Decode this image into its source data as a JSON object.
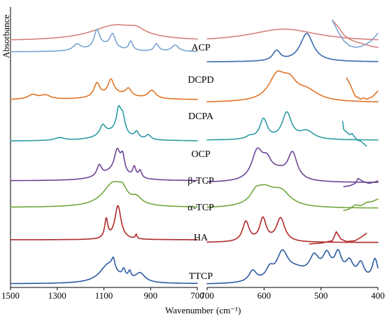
{
  "chart_data": [
    {
      "type": "line",
      "panel": "left",
      "xlabel": "Wavenumber",
      "ylabel": "Absorbance",
      "xlim": [
        1500,
        700
      ],
      "x_ticks": [
        "1500",
        "1300",
        "1100",
        "900",
        "700"
      ],
      "series": [
        {
          "name": "ACP",
          "color": "#d4827b",
          "baseline": 0.75,
          "peaks": [
            {
              "x": 1050,
              "h": 0.85,
              "w": 130
            },
            {
              "x": 960,
              "h": 0.25,
              "w": 40
            }
          ]
        },
        {
          "name": "DCPD",
          "color": "#7aa3d3",
          "baseline": 1.0,
          "peaks": [
            {
              "x": 1215,
              "h": 0.35,
              "w": 20
            },
            {
              "x": 1130,
              "h": 0.95,
              "w": 14
            },
            {
              "x": 1063,
              "h": 0.75,
              "w": 14
            },
            {
              "x": 985,
              "h": 0.5,
              "w": 10
            },
            {
              "x": 875,
              "h": 0.4,
              "w": 12
            },
            {
              "x": 795,
              "h": 0.35,
              "w": 18
            },
            {
              "x": 1100,
              "h": 0.3,
              "w": 60
            }
          ]
        },
        {
          "name": "DCPA",
          "color": "#e07428",
          "baseline": 0.6,
          "peaks": [
            {
              "x": 1405,
              "h": 0.25,
              "w": 25
            },
            {
              "x": 1350,
              "h": 0.22,
              "w": 25
            },
            {
              "x": 1130,
              "h": 0.75,
              "w": 15
            },
            {
              "x": 1070,
              "h": 0.8,
              "w": 15
            },
            {
              "x": 995,
              "h": 0.4,
              "w": 15
            },
            {
              "x": 895,
              "h": 0.45,
              "w": 20
            },
            {
              "x": 1050,
              "h": 0.3,
              "w": 80
            }
          ]
        },
        {
          "name": "OCP",
          "color": "#2e9aa3",
          "baseline": 0.45,
          "peaks": [
            {
              "x": 1105,
              "h": 0.55,
              "w": 15
            },
            {
              "x": 1037,
              "h": 1.2,
              "w": 12
            },
            {
              "x": 1020,
              "h": 0.9,
              "w": 12
            },
            {
              "x": 960,
              "h": 0.35,
              "w": 10
            },
            {
              "x": 910,
              "h": 0.25,
              "w": 12
            },
            {
              "x": 1290,
              "h": 0.15,
              "w": 25
            },
            {
              "x": 1060,
              "h": 0.45,
              "w": 70
            }
          ]
        },
        {
          "name": "β-TCP",
          "color": "#6e4595",
          "baseline": 0.5,
          "peaks": [
            {
              "x": 1120,
              "h": 0.6,
              "w": 12
            },
            {
              "x": 1043,
              "h": 1.2,
              "w": 15
            },
            {
              "x": 1020,
              "h": 0.9,
              "w": 10
            },
            {
              "x": 970,
              "h": 0.55,
              "w": 8
            },
            {
              "x": 945,
              "h": 0.4,
              "w": 8
            },
            {
              "x": 1060,
              "h": 0.45,
              "w": 70
            }
          ]
        },
        {
          "name": "α-TCP",
          "color": "#6fa83c",
          "baseline": 0.35,
          "peaks": [
            {
              "x": 1060,
              "h": 1.3,
              "w": 55
            },
            {
              "x": 1020,
              "h": 0.45,
              "w": 20
            },
            {
              "x": 960,
              "h": 0.35,
              "w": 25
            }
          ]
        },
        {
          "name": "HA",
          "color": "#b02a2a",
          "baseline": 0.5,
          "peaks": [
            {
              "x": 1090,
              "h": 1.05,
              "w": 8
            },
            {
              "x": 1040,
              "h": 1.85,
              "w": 16
            },
            {
              "x": 962,
              "h": 0.25,
              "w": 4
            }
          ]
        },
        {
          "name": "TTCP",
          "color": "#2c5ca3",
          "baseline": 0.2,
          "peaks": [
            {
              "x": 1080,
              "h": 1.05,
              "w": 45
            },
            {
              "x": 1060,
              "h": 0.55,
              "w": 8
            },
            {
              "x": 1015,
              "h": 0.45,
              "w": 8
            },
            {
              "x": 990,
              "h": 0.4,
              "w": 7
            },
            {
              "x": 945,
              "h": 0.5,
              "w": 25
            }
          ]
        }
      ]
    },
    {
      "type": "line",
      "panel": "right",
      "xlabel": "(cm⁻¹)",
      "xlim": [
        700,
        400
      ],
      "x_ticks": [
        "700",
        "600",
        "500",
        "400"
      ],
      "series": [
        {
          "name": "ACP",
          "color": "#d4827b",
          "baseline": 0.7,
          "peaks": [
            {
              "x": 565,
              "h": 0.7,
              "w": 75
            }
          ],
          "inset": {
            "color": "#d4827b",
            "x": [
              480,
              400
            ],
            "points": [
              [
                480,
                2.1
              ],
              [
                470,
                1.7
              ],
              [
                460,
                1.2
              ],
              [
                450,
                0.95
              ],
              [
                440,
                0.8
              ],
              [
                430,
                0.7
              ],
              [
                420,
                0.6
              ],
              [
                410,
                0.5
              ],
              [
                400,
                0.45
              ]
            ]
          },
          "inset2": {
            "color": "#7aa3d3",
            "points": [
              [
                480,
                2.1
              ],
              [
                470,
                1.4
              ],
              [
                460,
                0.85
              ],
              [
                450,
                0.55
              ],
              [
                440,
                0.45
              ],
              [
                430,
                0.5
              ],
              [
                420,
                0.65
              ],
              [
                410,
                0.9
              ],
              [
                400,
                1.3
              ]
            ]
          }
        },
        {
          "name": "DCPD",
          "color": "#3a68b0",
          "baseline": 0.45,
          "peaks": [
            {
              "x": 578,
              "h": 0.55,
              "w": 8
            },
            {
              "x": 525,
              "h": 1.55,
              "w": 14
            }
          ]
        },
        {
          "name": "DCPA",
          "color": "#e07428",
          "baseline": 0.45,
          "peaks": [
            {
              "x": 577,
              "h": 1.35,
              "w": 18
            },
            {
              "x": 555,
              "h": 0.8,
              "w": 15
            },
            {
              "x": 525,
              "h": 0.55,
              "w": 25
            }
          ],
          "inset": {
            "color": "#e07428",
            "points": [
              [
                455,
                2.0
              ],
              [
                450,
                1.7
              ],
              [
                440,
                0.9
              ],
              [
                430,
                0.7
              ],
              [
                425,
                0.8
              ],
              [
                420,
                0.7
              ],
              [
                410,
                0.85
              ],
              [
                400,
                1.2
              ]
            ]
          }
        },
        {
          "name": "OCP",
          "color": "#2e9aa3",
          "baseline": 0.5,
          "peaks": [
            {
              "x": 601,
              "h": 1.1,
              "w": 8
            },
            {
              "x": 560,
              "h": 1.45,
              "w": 10
            },
            {
              "x": 525,
              "h": 0.45,
              "w": 15
            },
            {
              "x": 625,
              "h": 0.15,
              "w": 8
            }
          ],
          "inset": {
            "color": "#2e9aa3",
            "points": [
              [
                462,
                1.7
              ],
              [
                460,
                1.2
              ],
              [
                450,
                0.9
              ],
              [
                445,
                0.95
              ],
              [
                440,
                0.7
              ],
              [
                435,
                0.55
              ],
              [
                430,
                0.5
              ],
              [
                420,
                0.2
              ]
            ]
          }
        },
        {
          "name": "β-TCP",
          "color": "#6e4595",
          "baseline": 0.4,
          "peaks": [
            {
              "x": 612,
              "h": 1.55,
              "w": 12
            },
            {
              "x": 595,
              "h": 0.8,
              "w": 10
            },
            {
              "x": 550,
              "h": 1.45,
              "w": 10
            },
            {
              "x": 575,
              "h": 0.45,
              "w": 20
            }
          ],
          "inset": {
            "color": "#6e4595",
            "points": [
              [
                460,
                0.2
              ],
              [
                450,
                0.25
              ],
              [
                440,
                0.4
              ],
              [
                435,
                0.7
              ],
              [
                425,
                0.5
              ],
              [
                415,
                0.4
              ],
              [
                405,
                0.5
              ],
              [
                400,
                0.55
              ]
            ]
          }
        },
        {
          "name": "α-TCP",
          "color": "#6fa83c",
          "baseline": 0.3,
          "peaks": [
            {
              "x": 600,
              "h": 0.95,
              "w": 22
            },
            {
              "x": 570,
              "h": 0.75,
              "w": 20
            },
            {
              "x": 615,
              "h": 0.4,
              "w": 10
            }
          ],
          "inset": {
            "color": "#6fa83c",
            "points": [
              [
                460,
                0.2
              ],
              [
                450,
                0.3
              ],
              [
                440,
                0.55
              ],
              [
                430,
                0.5
              ],
              [
                420,
                0.7
              ],
              [
                410,
                0.75
              ],
              [
                400,
                0.9
              ]
            ]
          }
        },
        {
          "name": "HA",
          "color": "#b02a2a",
          "baseline": 0.35,
          "peaks": [
            {
              "x": 632,
              "h": 1.1,
              "w": 7
            },
            {
              "x": 602,
              "h": 1.25,
              "w": 7
            },
            {
              "x": 571,
              "h": 1.3,
              "w": 9
            }
          ],
          "inset": {
            "color": "#b02a2a",
            "points": [
              [
                520,
                0.3
              ],
              [
                500,
                0.35
              ],
              [
                480,
                0.5
              ],
              [
                473,
                1.05
              ],
              [
                465,
                0.6
              ],
              [
                455,
                0.45
              ],
              [
                440,
                0.5
              ],
              [
                430,
                0.7
              ],
              [
                420,
                0.95
              ]
            ]
          }
        },
        {
          "name": "TTCP",
          "color": "#2c5ca3",
          "baseline": 0.15,
          "peaks": [
            {
              "x": 620,
              "h": 0.6,
              "w": 8
            },
            {
              "x": 590,
              "h": 0.55,
              "w": 8
            },
            {
              "x": 568,
              "h": 1.4,
              "w": 12
            },
            {
              "x": 512,
              "h": 1.0,
              "w": 10
            },
            {
              "x": 490,
              "h": 0.95,
              "w": 8
            },
            {
              "x": 470,
              "h": 1.05,
              "w": 7
            },
            {
              "x": 450,
              "h": 0.8,
              "w": 8
            },
            {
              "x": 430,
              "h": 0.85,
              "w": 7
            },
            {
              "x": 405,
              "h": 1.2,
              "w": 6
            },
            {
              "x": 545,
              "h": 0.55,
              "w": 25
            },
            {
              "x": 480,
              "h": 0.5,
              "w": 40
            }
          ]
        }
      ]
    }
  ]
}
